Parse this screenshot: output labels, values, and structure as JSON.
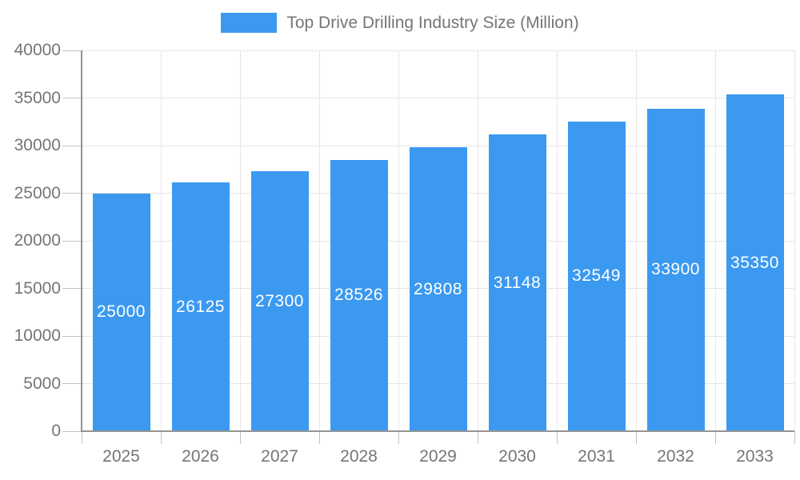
{
  "legend": {
    "label": "Top Drive Drilling Industry Size (Million)",
    "swatch_color": "#3b99f0"
  },
  "chart_data": {
    "type": "bar",
    "title": "Top Drive Drilling Industry Size (Million)",
    "categories": [
      "2025",
      "2026",
      "2027",
      "2028",
      "2029",
      "2030",
      "2031",
      "2032",
      "2033"
    ],
    "series": [
      {
        "name": "Top Drive Drilling Industry Size (Million)",
        "values": [
          25000,
          26125,
          27300,
          28526,
          29808,
          31148,
          32549,
          33900,
          35350
        ]
      }
    ],
    "xlabel": "",
    "ylabel": "",
    "ylim": [
      0,
      40000
    ],
    "ytick_step": 5000,
    "ytick_labels": [
      "0",
      "5000",
      "10000",
      "15000",
      "20000",
      "25000",
      "30000",
      "35000",
      "40000"
    ],
    "grid": true,
    "legend_position": "top",
    "bar_color": "#3b99f0",
    "value_label_color": "#ffffff",
    "axis_color": "#949494",
    "gridline_color": "#e6e6e6",
    "text_color": "#757575"
  }
}
